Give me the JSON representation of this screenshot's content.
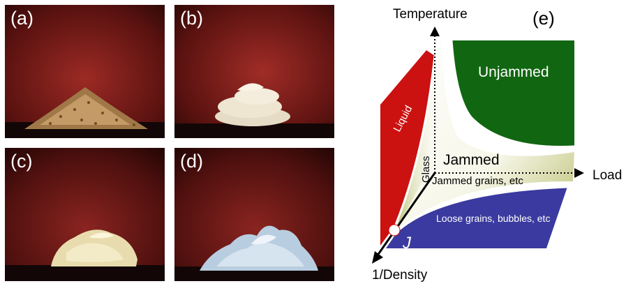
{
  "panels": [
    {
      "label": "(a)",
      "subject": "pile of grains"
    },
    {
      "label": "(b)",
      "subject": "foam"
    },
    {
      "label": "(c)",
      "subject": "mayonnaise"
    },
    {
      "label": "(d)",
      "subject": "shaving foam"
    }
  ],
  "diagram": {
    "label": "(e)",
    "axes": {
      "temperature": "Temperature",
      "load": "Load",
      "density": "1/Density"
    },
    "regions": {
      "liquid": "Liquid",
      "glass": "Glass",
      "unjammed": "Unjammed",
      "jammed": "Jammed",
      "jammed_grains": "Jammed grains, etc",
      "loose_grains": "Loose grains, bubbles, etc"
    },
    "point_j": "J",
    "colors": {
      "liquid": "#cc1111",
      "unjammed": "#116611",
      "loose": "#3a3aa0",
      "jammed_edge": "#b9be6e"
    }
  }
}
